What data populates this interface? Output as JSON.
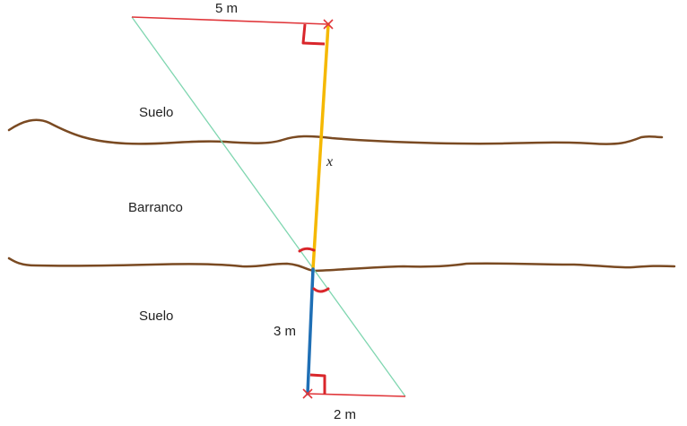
{
  "labels": {
    "top_length": "5 m",
    "bottom_length": "2 m",
    "lower_vertical": "3 m",
    "unknown": "x",
    "suelo_top": "Suelo",
    "barranco": "Barranco",
    "suelo_bottom": "Suelo"
  },
  "colors": {
    "ground": "#7a4a22",
    "horizontal_segments": "#e0363a",
    "unknown_segment": "#f5b800",
    "known_segment": "#1f6fb5",
    "diagonal": "#7fd6b0",
    "angle_marks": "#d9262b",
    "markers": "#e0363a"
  }
}
